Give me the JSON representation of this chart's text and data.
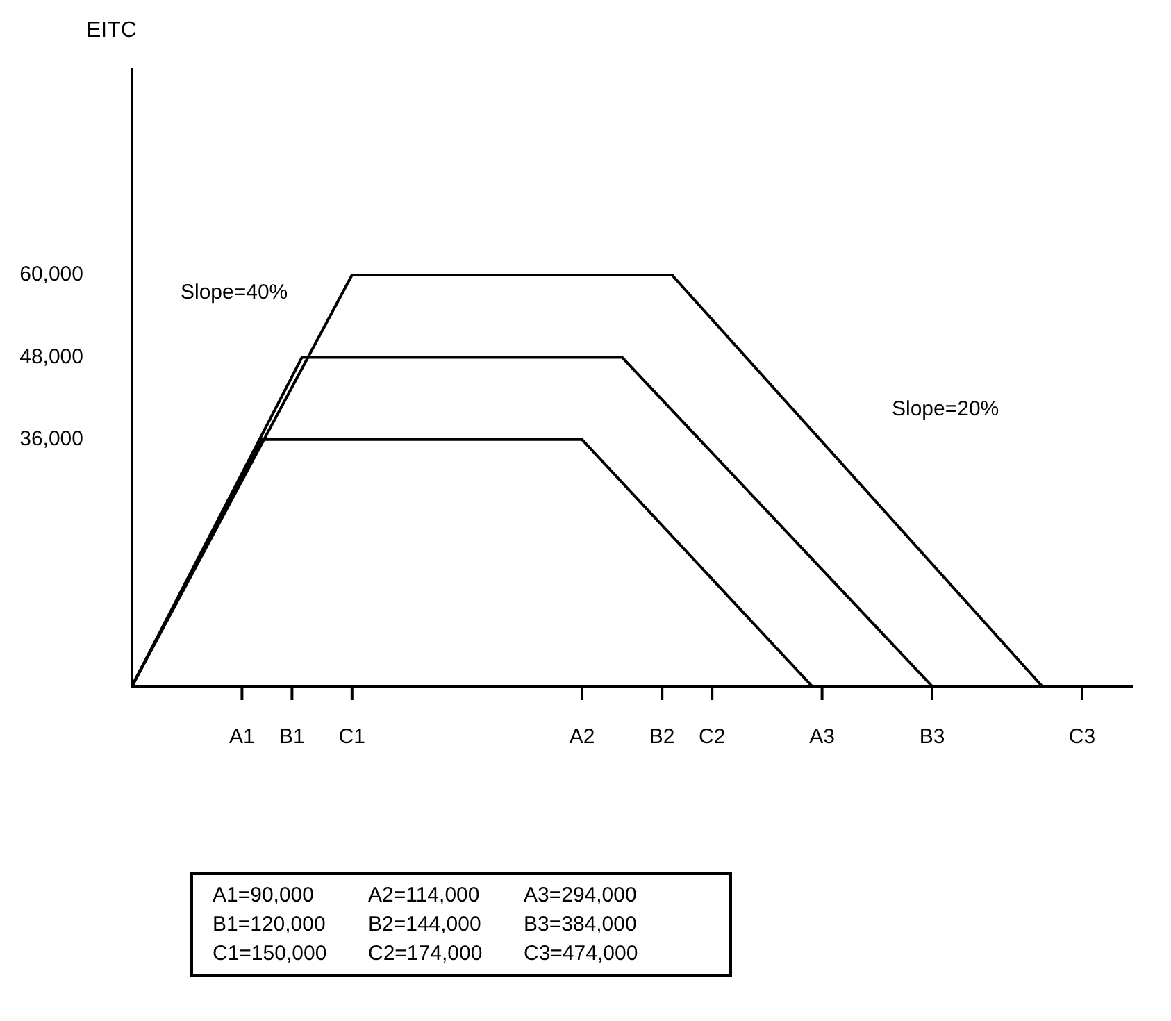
{
  "chart_data": {
    "type": "line",
    "ylabel": "EITC",
    "ylim": [
      0,
      90000
    ],
    "yticks": [
      {
        "value": 36000,
        "label": "36,000"
      },
      {
        "value": 48000,
        "label": "48,000"
      },
      {
        "value": 60000,
        "label": "60,000"
      }
    ],
    "categories": [
      null,
      null,
      null,
      null,
      null,
      null,
      null,
      null,
      null,
      null,
      null,
      "A1",
      null,
      null,
      null,
      null,
      "B1",
      null,
      null,
      null,
      null,
      null,
      "C1",
      null,
      null,
      null,
      null,
      null,
      null,
      null,
      null,
      null,
      null,
      null,
      null,
      null,
      null,
      null,
      null,
      null,
      null,
      null,
      null,
      null,
      null,
      "A2",
      null,
      null,
      null,
      null,
      null,
      null,
      null,
      "B2",
      null,
      null,
      null,
      null,
      "C2",
      null,
      null,
      null,
      null,
      null,
      null,
      null,
      null,
      null,
      null,
      "A3",
      null,
      null,
      null,
      null,
      null,
      null,
      null,
      null,
      null,
      null,
      "B3",
      null,
      null,
      null,
      null,
      null,
      null,
      null,
      null,
      null,
      null,
      null,
      null,
      null,
      null,
      "C3",
      null,
      null,
      null,
      null,
      null
    ],
    "series": [
      {
        "color": "#000000",
        "values": [
          0,
          null,
          null,
          null,
          null,
          null,
          null,
          null,
          null,
          null,
          null,
          null,
          null,
          36000,
          null,
          null,
          null,
          null,
          null,
          null,
          null,
          null,
          null,
          null,
          null,
          null,
          null,
          null,
          null,
          null,
          null,
          null,
          null,
          null,
          null,
          null,
          null,
          null,
          null,
          null,
          null,
          null,
          null,
          null,
          null,
          36000,
          null,
          null,
          null,
          null,
          null,
          null,
          null,
          null,
          null,
          null,
          null,
          null,
          null,
          null,
          null,
          null,
          null,
          null,
          null,
          null,
          null,
          null,
          0,
          null,
          null,
          null,
          null,
          null,
          null,
          null,
          null,
          null,
          null,
          null,
          null,
          null,
          null,
          null,
          null,
          null,
          null,
          null,
          null,
          null,
          null,
          null,
          null,
          null,
          null,
          null,
          null,
          null,
          null,
          null,
          null
        ]
      },
      {
        "color": "#000000",
        "values": [
          0,
          null,
          null,
          null,
          null,
          null,
          null,
          null,
          null,
          null,
          null,
          null,
          null,
          null,
          null,
          null,
          null,
          48000,
          null,
          null,
          null,
          null,
          null,
          null,
          null,
          null,
          null,
          null,
          null,
          null,
          null,
          null,
          null,
          null,
          null,
          null,
          null,
          null,
          null,
          null,
          null,
          null,
          null,
          null,
          null,
          null,
          null,
          null,
          null,
          48000,
          null,
          null,
          null,
          null,
          null,
          null,
          null,
          null,
          null,
          null,
          null,
          null,
          null,
          null,
          null,
          null,
          null,
          null,
          null,
          null,
          null,
          null,
          null,
          null,
          null,
          null,
          null,
          null,
          null,
          null,
          0,
          null,
          null,
          null,
          null,
          null,
          null,
          null,
          null,
          null,
          null,
          null,
          null,
          null,
          null,
          null,
          null,
          null,
          null,
          null,
          null
        ]
      },
      {
        "color": "#000000",
        "values": [
          0,
          null,
          null,
          null,
          null,
          null,
          null,
          null,
          null,
          null,
          null,
          null,
          null,
          null,
          null,
          null,
          null,
          null,
          null,
          null,
          null,
          null,
          60000,
          null,
          null,
          null,
          null,
          null,
          null,
          null,
          null,
          null,
          null,
          null,
          null,
          null,
          null,
          null,
          null,
          null,
          null,
          null,
          null,
          null,
          null,
          null,
          null,
          null,
          null,
          null,
          null,
          null,
          null,
          null,
          60000,
          null,
          null,
          null,
          null,
          null,
          null,
          null,
          null,
          null,
          null,
          null,
          null,
          null,
          null,
          null,
          null,
          null,
          null,
          null,
          null,
          null,
          null,
          null,
          null,
          null,
          null,
          null,
          null,
          null,
          null,
          null,
          null,
          null,
          null,
          null,
          null,
          0,
          null,
          null,
          null,
          null,
          null,
          null,
          null,
          null,
          null
        ]
      }
    ],
    "marker": "none",
    "grid": false,
    "legend": false,
    "annotations": [
      "Slope=40%",
      "Slope=20%",
      "A1=90,000",
      "A2=114,000",
      "A3=294,000",
      "B1=120,000",
      "B2=144,000",
      "B3=384,000",
      "C1=150,000",
      "C2=174,000",
      "C3=474,000"
    ]
  }
}
